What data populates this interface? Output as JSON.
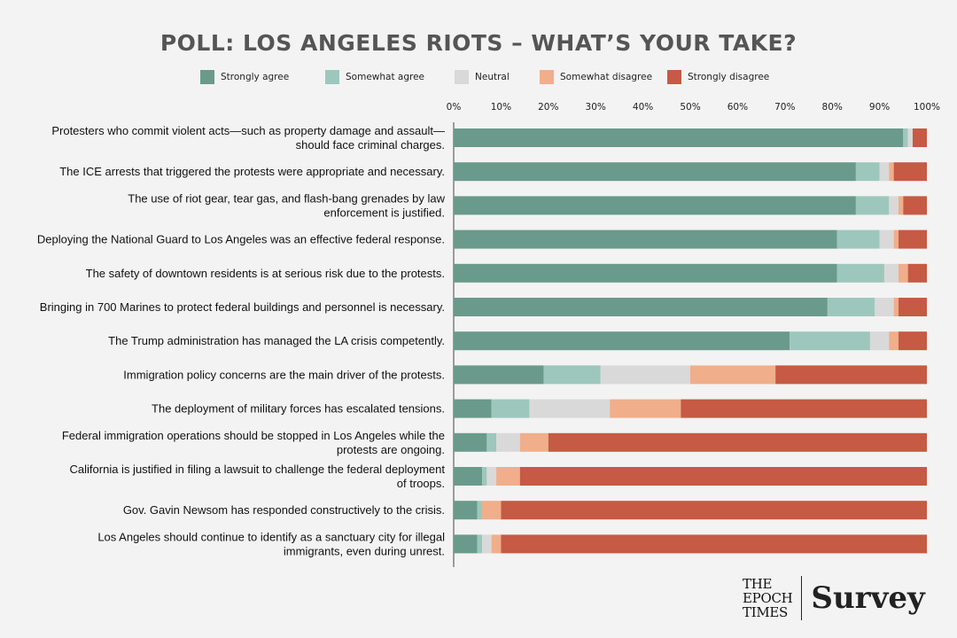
{
  "chart_data": {
    "type": "bar",
    "orientation": "horizontal",
    "stacked": true,
    "title": "POLL: LOS ANGELES RIOTS – WHAT’S YOUR TAKE?",
    "xlim": [
      0,
      100
    ],
    "x_ticks": [
      "0%",
      "10%",
      "20%",
      "30%",
      "40%",
      "50%",
      "60%",
      "70%",
      "80%",
      "90%",
      "100%"
    ],
    "legend_position": "top",
    "categories": [
      [
        "Protesters who commit violent acts—such as property damage and assault—",
        "should face criminal charges."
      ],
      [
        "The ICE arrests that triggered the protests were appropriate and necessary."
      ],
      [
        "The use of riot gear, tear gas, and flash-bang grenades by law",
        "enforcement is justified."
      ],
      [
        "Deploying the National Guard to Los Angeles was an effective federal response."
      ],
      [
        "The safety of downtown residents is at serious risk due to the protests."
      ],
      [
        "Bringing in 700 Marines to protect federal buildings and personnel is necessary."
      ],
      [
        "The Trump administration has managed the LA crisis competently."
      ],
      [
        "Immigration policy concerns are the main driver of the protests."
      ],
      [
        "The deployment of military forces has escalated tensions."
      ],
      [
        "Federal immigration operations should be stopped in Los Angeles while the",
        "protests are ongoing."
      ],
      [
        "California is justified in filing a lawsuit to challenge the federal deployment",
        "of troops."
      ],
      [
        "Gov. Gavin Newsom has responded constructively to the crisis."
      ],
      [
        "Los Angeles should continue to identify as a sanctuary city for illegal",
        "immigrants, even during unrest."
      ]
    ],
    "series": [
      {
        "name": "Strongly agree",
        "color": "#6a9a8b",
        "values": [
          95,
          85,
          85,
          81,
          81,
          79,
          71,
          19,
          8,
          7,
          6,
          5,
          5
        ]
      },
      {
        "name": "Somewhat agree",
        "color": "#9dc7bd",
        "values": [
          1,
          5,
          7,
          9,
          10,
          10,
          17,
          12,
          8,
          2,
          1,
          1,
          1
        ]
      },
      {
        "name": "Neutral",
        "color": "#d9d9d9",
        "values": [
          1,
          2,
          2,
          3,
          3,
          4,
          4,
          19,
          17,
          5,
          2,
          0,
          2
        ]
      },
      {
        "name": "Somewhat disagree",
        "color": "#f0ae8b",
        "values": [
          0,
          1,
          1,
          1,
          2,
          1,
          2,
          18,
          15,
          6,
          5,
          4,
          2
        ]
      },
      {
        "name": "Strongly disagree",
        "color": "#c65a44",
        "values": [
          3,
          7,
          5,
          6,
          4,
          6,
          6,
          32,
          52,
          80,
          86,
          90,
          90
        ]
      }
    ]
  },
  "branding": {
    "logo_left_lines": [
      "THE",
      "EPOCH",
      "TIMES"
    ],
    "logo_right": "Survey"
  }
}
